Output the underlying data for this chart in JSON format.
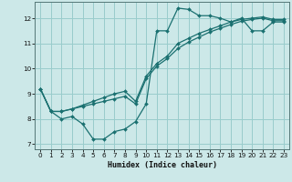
{
  "xlabel": "Humidex (Indice chaleur)",
  "bg_color": "#cce8e8",
  "grid_color": "#99cccc",
  "line_color": "#1a7070",
  "xlim": [
    -0.5,
    23.5
  ],
  "ylim": [
    6.8,
    12.65
  ],
  "yticks": [
    7,
    8,
    9,
    10,
    11,
    12
  ],
  "xticks": [
    0,
    1,
    2,
    3,
    4,
    5,
    6,
    7,
    8,
    9,
    10,
    11,
    12,
    13,
    14,
    15,
    16,
    17,
    18,
    19,
    20,
    21,
    22,
    23
  ],
  "line1_x": [
    0,
    1,
    2,
    3,
    4,
    5,
    6,
    7,
    8,
    9,
    10,
    11,
    12,
    13,
    14,
    15,
    16,
    17,
    18,
    19,
    20,
    21,
    22,
    23
  ],
  "line1_y": [
    9.2,
    8.3,
    8.0,
    8.1,
    7.8,
    7.2,
    7.2,
    7.5,
    7.6,
    7.9,
    8.6,
    11.5,
    11.5,
    12.4,
    12.35,
    12.1,
    12.1,
    12.0,
    11.85,
    12.0,
    11.5,
    11.5,
    11.85,
    11.85
  ],
  "line2_x": [
    0,
    1,
    2,
    3,
    4,
    5,
    6,
    7,
    8,
    9,
    10,
    11,
    12,
    13,
    14,
    15,
    16,
    17,
    18,
    19,
    20,
    21,
    22,
    23
  ],
  "line2_y": [
    9.2,
    8.3,
    8.3,
    8.4,
    8.5,
    8.6,
    8.7,
    8.8,
    8.9,
    8.6,
    9.6,
    10.1,
    10.4,
    10.8,
    11.05,
    11.25,
    11.45,
    11.6,
    11.75,
    11.88,
    11.95,
    12.0,
    11.9,
    11.9
  ],
  "line3_x": [
    0,
    1,
    2,
    3,
    4,
    5,
    6,
    7,
    8,
    9,
    10,
    11,
    12,
    13,
    14,
    15,
    16,
    17,
    18,
    19,
    20,
    21,
    22,
    23
  ],
  "line3_y": [
    9.2,
    8.3,
    8.3,
    8.4,
    8.55,
    8.7,
    8.85,
    9.0,
    9.1,
    8.7,
    9.7,
    10.2,
    10.5,
    11.0,
    11.2,
    11.4,
    11.55,
    11.7,
    11.85,
    11.95,
    12.0,
    12.05,
    11.95,
    11.95
  ]
}
